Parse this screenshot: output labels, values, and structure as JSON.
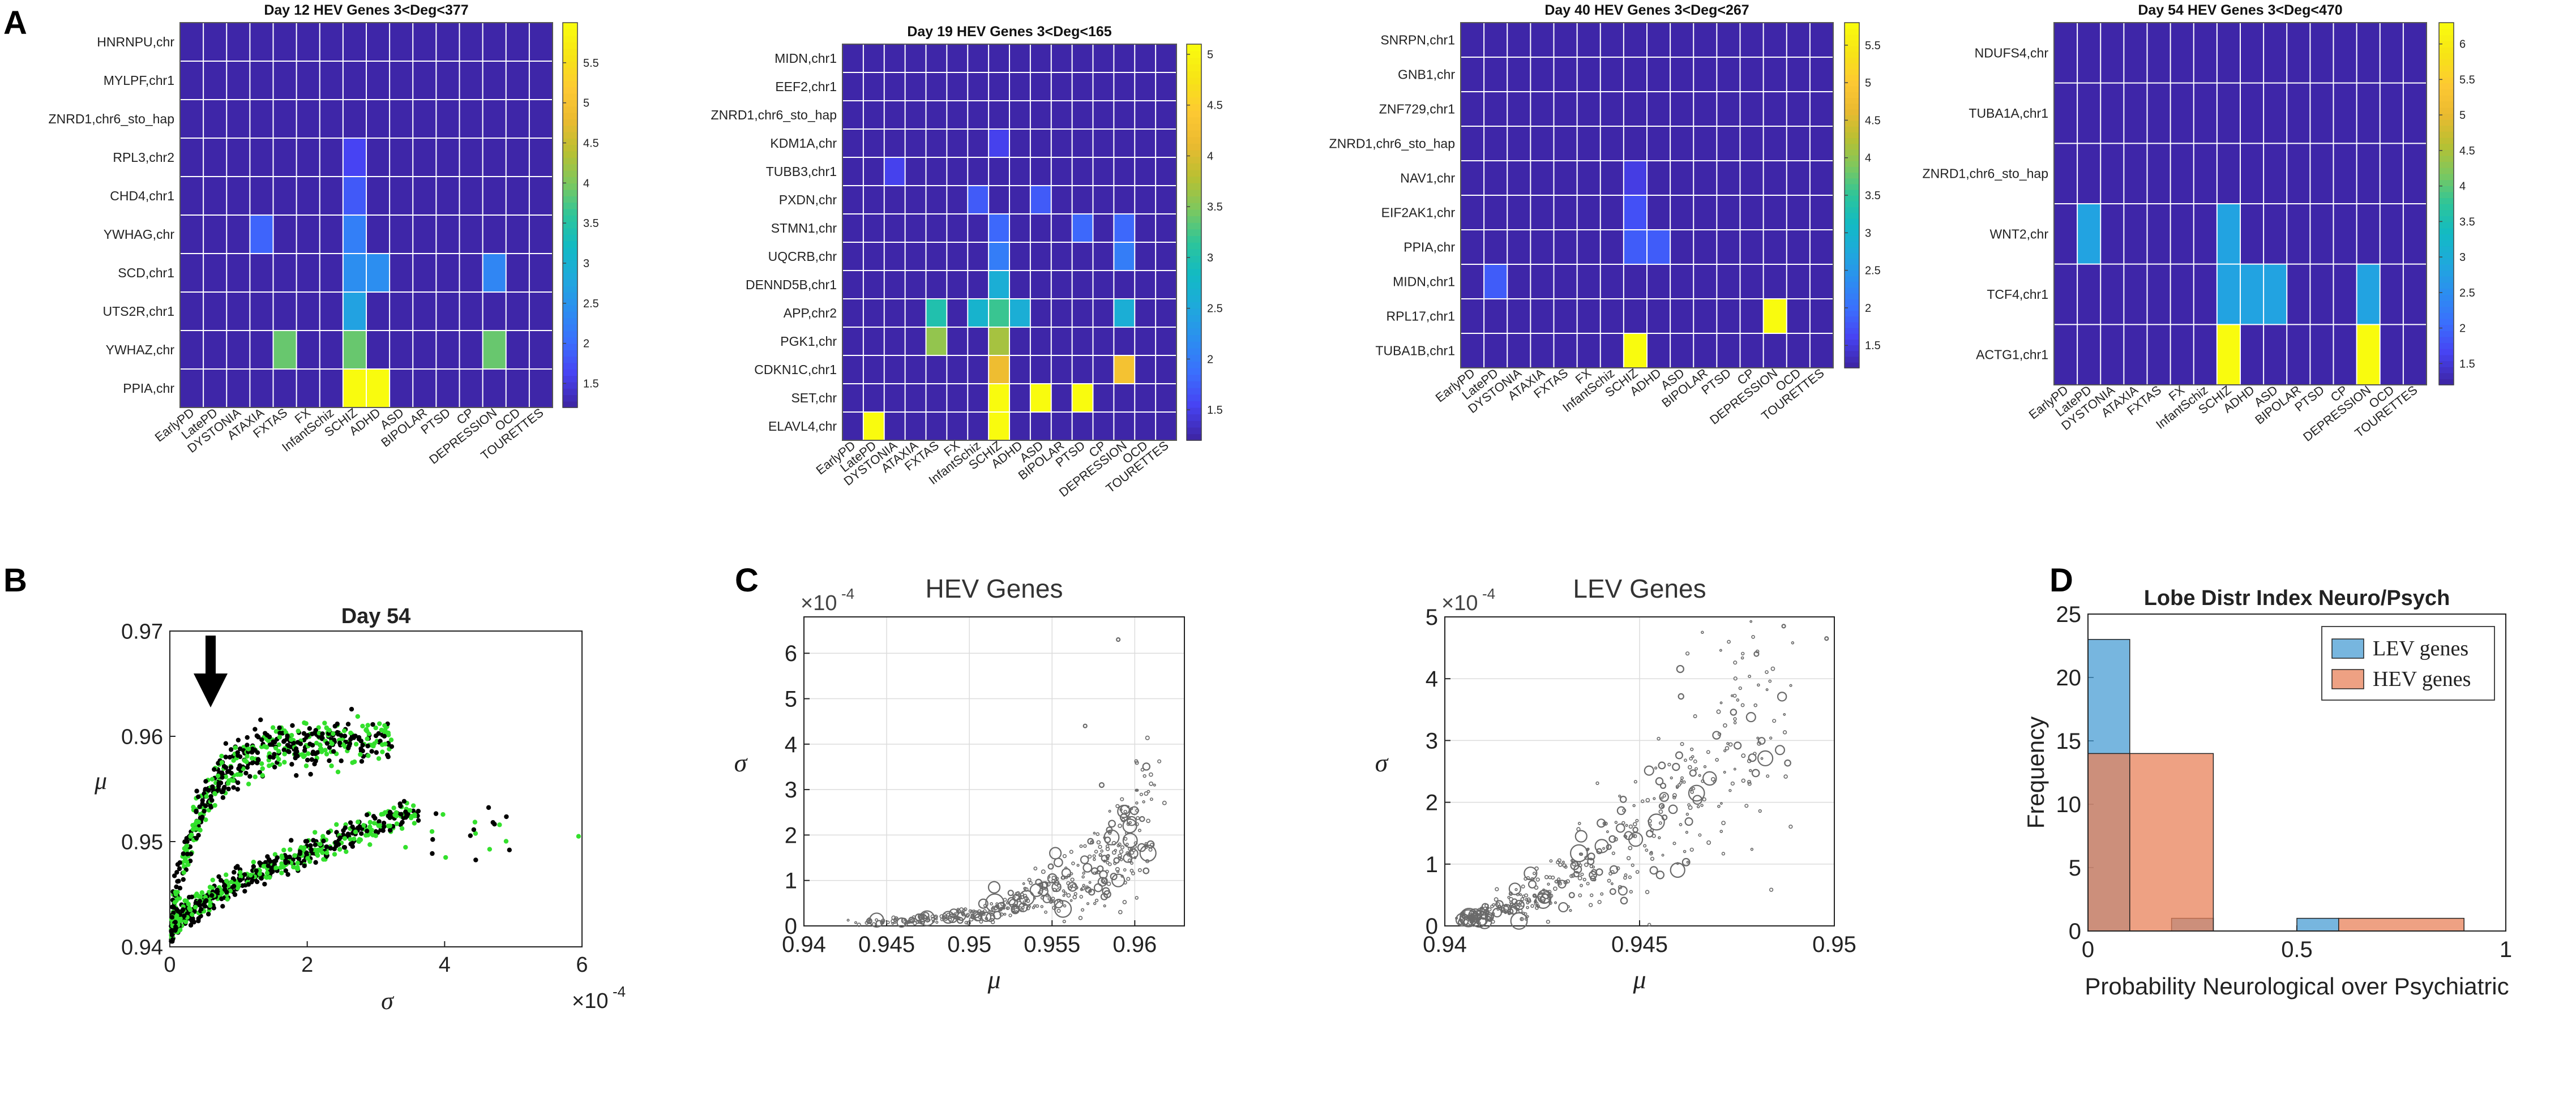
{
  "figure": {
    "panel_labels": [
      "A",
      "B",
      "C",
      "D"
    ],
    "disorders": [
      "EarlyPD",
      "LatePD",
      "DYSTONIA",
      "ATAXIA",
      "FXTAS",
      "FX",
      "InfantSchiz",
      "SCHIZ",
      "ADHD",
      "ASD",
      "BIPOLAR",
      "PTSD",
      "CP",
      "DEPRESSION",
      "OCD",
      "TOURETTES"
    ]
  },
  "colors": {
    "colormap": [
      "#3e26a8",
      "#4743f3",
      "#3b6ffd",
      "#2c8ef0",
      "#1fa9dc",
      "#12bac4",
      "#2dc59a",
      "#7cc85f",
      "#b8c032",
      "#eaba30",
      "#fdc933",
      "#f7e317",
      "#f9fb0e"
    ]
  },
  "heatmaps": [
    {
      "title": "Day 12  HEV  Genes 3<Deg<377",
      "genes": [
        "HNRNPU,chr",
        "MYLPF,chr1",
        "ZNRD1,chr6_sto_hap",
        "RPL3,chr2",
        "CHD4,chr1",
        "YWHAG,chr",
        "SCD,chr1",
        "UTS2R,chr1",
        "YWHAZ,chr",
        "PPIA,chr"
      ],
      "vmin": 1.2,
      "vmax": 6.0,
      "colorbar_ticks": [
        1.5,
        2,
        2.5,
        3,
        3.5,
        4,
        4.5,
        5,
        5.5
      ],
      "cells": [
        [
          3,
          7,
          1.6
        ],
        [
          4,
          7,
          1.8
        ],
        [
          5,
          3,
          1.9
        ],
        [
          5,
          7,
          2.2
        ],
        [
          6,
          7,
          2.4
        ],
        [
          6,
          8,
          2.4
        ],
        [
          6,
          13,
          2.3
        ],
        [
          7,
          7,
          2.7
        ],
        [
          8,
          4,
          3.9
        ],
        [
          8,
          7,
          3.9
        ],
        [
          8,
          13,
          3.9
        ],
        [
          9,
          7,
          6.0
        ],
        [
          9,
          8,
          6.0
        ]
      ]
    },
    {
      "title": "Day 19  HEV  Genes 3<Deg<165",
      "genes": [
        "MIDN,chr1",
        "EEF2,chr1",
        "ZNRD1,chr6_sto_hap",
        "KDM1A,chr",
        "TUBB3,chr1",
        "PXDN,chr",
        "STMN1,chr",
        "UQCRB,chr",
        "DENND5B,chr1",
        "APP,chr2",
        "PGK1,chr",
        "CDKN1C,chr1",
        "SET,chr",
        "ELAVL4,chr"
      ],
      "vmin": 1.2,
      "vmax": 5.1,
      "colorbar_ticks": [
        1.5,
        2,
        2.5,
        3,
        3.5,
        4,
        4.5,
        5
      ],
      "cells": [
        [
          3,
          7,
          1.5
        ],
        [
          4,
          2,
          1.5
        ],
        [
          5,
          6,
          1.7
        ],
        [
          5,
          9,
          1.7
        ],
        [
          6,
          7,
          1.8
        ],
        [
          6,
          11,
          1.8
        ],
        [
          6,
          13,
          1.8
        ],
        [
          7,
          7,
          2.0
        ],
        [
          7,
          13,
          2.0
        ],
        [
          8,
          7,
          2.6
        ],
        [
          9,
          4,
          3.0
        ],
        [
          9,
          6,
          2.7
        ],
        [
          9,
          7,
          3.2
        ],
        [
          9,
          8,
          2.6
        ],
        [
          9,
          13,
          2.6
        ],
        [
          10,
          4,
          3.6
        ],
        [
          10,
          7,
          3.7
        ],
        [
          11,
          7,
          4.2
        ],
        [
          11,
          13,
          4.3
        ],
        [
          12,
          7,
          5.1
        ],
        [
          12,
          9,
          5.1
        ],
        [
          12,
          11,
          5.1
        ],
        [
          13,
          1,
          5.1
        ],
        [
          13,
          7,
          5.1
        ]
      ]
    },
    {
      "title": "Day 40  HEV  Genes 3<Deg<267",
      "genes": [
        "SNRPN,chr1",
        "GNB1,chr",
        "ZNF729,chr1",
        "ZNRD1,chr6_sto_hap",
        "NAV1,chr",
        "EIF2AK1,chr",
        "PPIA,chr",
        "MIDN,chr1",
        "RPL17,chr1",
        "TUBA1B,chr1"
      ],
      "vmin": 1.2,
      "vmax": 5.8,
      "colorbar_ticks": [
        1.5,
        2,
        2.5,
        3,
        3.5,
        4,
        4.5,
        5,
        5.5
      ],
      "cells": [
        [
          4,
          7,
          1.5
        ],
        [
          5,
          7,
          1.7
        ],
        [
          6,
          7,
          1.8
        ],
        [
          6,
          8,
          1.8
        ],
        [
          7,
          1,
          1.8
        ],
        [
          8,
          13,
          5.8
        ],
        [
          9,
          7,
          5.8
        ]
      ]
    },
    {
      "title": "Day 54  HEV  Genes 3<Deg<470",
      "genes": [
        "NDUFS4,chr",
        "TUBA1A,chr1",
        "ZNRD1,chr6_sto_hap",
        "WNT2,chr",
        "TCF4,chr1",
        "ACTG1,chr1"
      ],
      "vmin": 1.2,
      "vmax": 6.3,
      "colorbar_ticks": [
        1.5,
        2,
        2.5,
        3,
        3.5,
        4,
        4.5,
        5,
        5.5,
        6
      ],
      "cells": [
        [
          3,
          1,
          2.8
        ],
        [
          3,
          7,
          2.8
        ],
        [
          4,
          7,
          2.8
        ],
        [
          4,
          8,
          2.8
        ],
        [
          4,
          9,
          2.8
        ],
        [
          4,
          13,
          2.8
        ],
        [
          5,
          7,
          6.3
        ],
        [
          5,
          13,
          6.3
        ]
      ]
    }
  ],
  "panel_b": {
    "title": "Day 54",
    "xlabel": "σ",
    "ylabel": "μ",
    "x_exponent": "×10",
    "x_exponent_power": "-4",
    "xlim": [
      0,
      6
    ],
    "ylim": [
      0.94,
      0.97
    ],
    "xticks": [
      "0",
      "2",
      "4",
      "6"
    ],
    "yticks": [
      "0.94",
      "0.95",
      "0.96",
      "0.97"
    ]
  },
  "panel_c": {
    "hev": {
      "title": "HEV Genes",
      "xlabel": "μ",
      "ylabel": "σ",
      "y_exponent": "×10",
      "y_exponent_power": "-4",
      "xlim": [
        0.94,
        0.963
      ],
      "ylim": [
        0,
        6.8
      ],
      "xticks": [
        "0.94",
        "0.945",
        "0.95",
        "0.955",
        "0.96"
      ],
      "yticks": [
        "0",
        "1",
        "2",
        "3",
        "4",
        "5",
        "6"
      ]
    },
    "lev": {
      "title": "LEV Genes",
      "xlabel": "μ",
      "ylabel": "σ",
      "y_exponent": "×10",
      "y_exponent_power": "-4",
      "xlim": [
        0.94,
        0.95
      ],
      "ylim": [
        0,
        5
      ],
      "xticks": [
        "0.94",
        "0.945",
        "0.95"
      ],
      "yticks": [
        "0",
        "1",
        "2",
        "3",
        "4",
        "5"
      ]
    }
  },
  "chart_data": {
    "type": "bar",
    "title": "Lobe Distr Index Neuro/Psych",
    "xlabel": "Probability Neurological over Psychiatric",
    "ylabel": "Frequency",
    "xlim": [
      0,
      1
    ],
    "ylim": [
      0,
      25
    ],
    "xticks": [
      "0",
      "0.5",
      "1"
    ],
    "yticks": [
      "0",
      "5",
      "10",
      "15",
      "20",
      "25"
    ],
    "legend_position": "top-right",
    "series": [
      {
        "name": "LEV genes",
        "color": "#4a9ed4",
        "bins": [
          [
            0,
            0.1,
            23
          ],
          [
            0.2,
            0.3,
            1
          ],
          [
            0.5,
            0.6,
            1
          ]
        ]
      },
      {
        "name": "HEV genes",
        "color": "#e8825a",
        "bins": [
          [
            0,
            0.1,
            14
          ],
          [
            0.1,
            0.3,
            14
          ],
          [
            0.6,
            0.9,
            1
          ]
        ]
      }
    ]
  }
}
